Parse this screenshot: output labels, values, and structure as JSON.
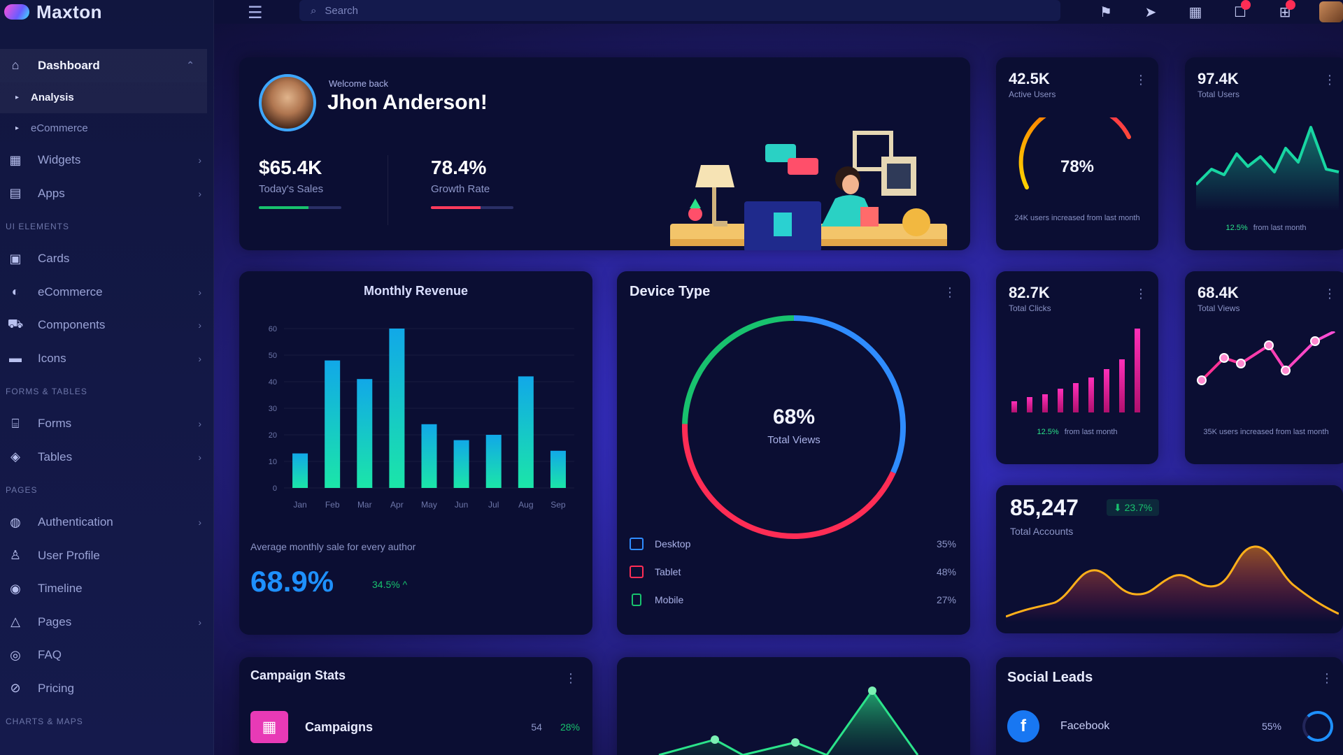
{
  "app": {
    "name": "Maxton"
  },
  "sidebar": {
    "dashboard": {
      "label": "Dashboard",
      "sub": [
        "Analysis",
        "eCommerce"
      ]
    },
    "items_top": [
      {
        "label": "Widgets",
        "icon": "widgets-icon"
      },
      {
        "label": "Apps",
        "icon": "apps-icon"
      }
    ],
    "heading_ui": "UI ELEMENTS",
    "items_ui": [
      {
        "label": "Cards",
        "icon": "cards-icon"
      },
      {
        "label": "eCommerce",
        "icon": "cart-icon"
      },
      {
        "label": "Components",
        "icon": "components-icon"
      },
      {
        "label": "Icons",
        "icon": "icons-icon"
      }
    ],
    "heading_forms": "FORMS & TABLES",
    "items_forms": [
      {
        "label": "Forms",
        "icon": "forms-icon"
      },
      {
        "label": "Tables",
        "icon": "tables-icon"
      }
    ],
    "heading_pages": "PAGES",
    "items_pages": [
      {
        "label": "Authentication",
        "icon": "lock-icon"
      },
      {
        "label": "User Profile",
        "icon": "user-icon"
      },
      {
        "label": "Timeline",
        "icon": "timeline-icon"
      },
      {
        "label": "Pages",
        "icon": "pages-icon"
      },
      {
        "label": "FAQ",
        "icon": "faq-icon"
      },
      {
        "label": "Pricing",
        "icon": "pricing-icon"
      }
    ],
    "heading_charts": "CHARTS & MAPS"
  },
  "topbar": {
    "search_placeholder": "Search"
  },
  "welcome": {
    "greeting": "Welcome back",
    "name": "Jhon Anderson!",
    "stats": [
      {
        "value": "$65.4K",
        "label": "Today's Sales",
        "color": "#18c26e",
        "progress": 0.6
      },
      {
        "value": "78.4%",
        "label": "Growth Rate",
        "color": "#ff3b5c",
        "progress": 0.6
      }
    ]
  },
  "mini_cards": [
    {
      "value": "42.5K",
      "label": "Active Users",
      "gauge": "78%",
      "footer": "24K users increased from last month"
    },
    {
      "value": "97.4K",
      "label": "Total Users",
      "change": "12.5%",
      "footer": "from last month"
    },
    {
      "value": "82.7K",
      "label": "Total Clicks",
      "change": "12.5%",
      "footer": "from last month"
    },
    {
      "value": "68.4K",
      "label": "Total Views",
      "footer": "35K users increased from last month"
    }
  ],
  "revenue": {
    "title": "Monthly Revenue",
    "note": "Average monthly sale for every author",
    "big": "68.9%",
    "change": "34.5% ^"
  },
  "device": {
    "title": "Device Type",
    "center_value": "68%",
    "center_label": "Total Views",
    "legend": [
      {
        "name": "Desktop",
        "pct": "35%",
        "color": "#2f8cff"
      },
      {
        "name": "Tablet",
        "pct": "48%",
        "color": "#ff2d55"
      },
      {
        "name": "Mobile",
        "pct": "27%",
        "color": "#18c26e"
      }
    ]
  },
  "traffic": {
    "value": "85,247",
    "badge": "23.7%",
    "label": "Total Accounts"
  },
  "campaign": {
    "title": "Campaign Stats",
    "row": {
      "name": "Campaigns",
      "count": "54",
      "pct": "28%"
    }
  },
  "social": {
    "title": "Social Leads",
    "row": {
      "name": "Facebook",
      "pct": "55%"
    }
  },
  "chart_data": [
    {
      "type": "bar",
      "title": "Monthly Revenue",
      "categories": [
        "Jan",
        "Feb",
        "Mar",
        "Apr",
        "May",
        "Jun",
        "Jul",
        "Aug",
        "Sep"
      ],
      "values": [
        13,
        48,
        41,
        60,
        24,
        18,
        20,
        42,
        14
      ],
      "ylim": [
        0,
        60
      ],
      "yticks": [
        "0",
        "10",
        "20",
        "30",
        "40",
        "50",
        "60"
      ]
    },
    {
      "type": "pie",
      "title": "Device Type",
      "categories": [
        "Desktop",
        "Tablet",
        "Mobile"
      ],
      "values": [
        35,
        48,
        27
      ]
    }
  ]
}
